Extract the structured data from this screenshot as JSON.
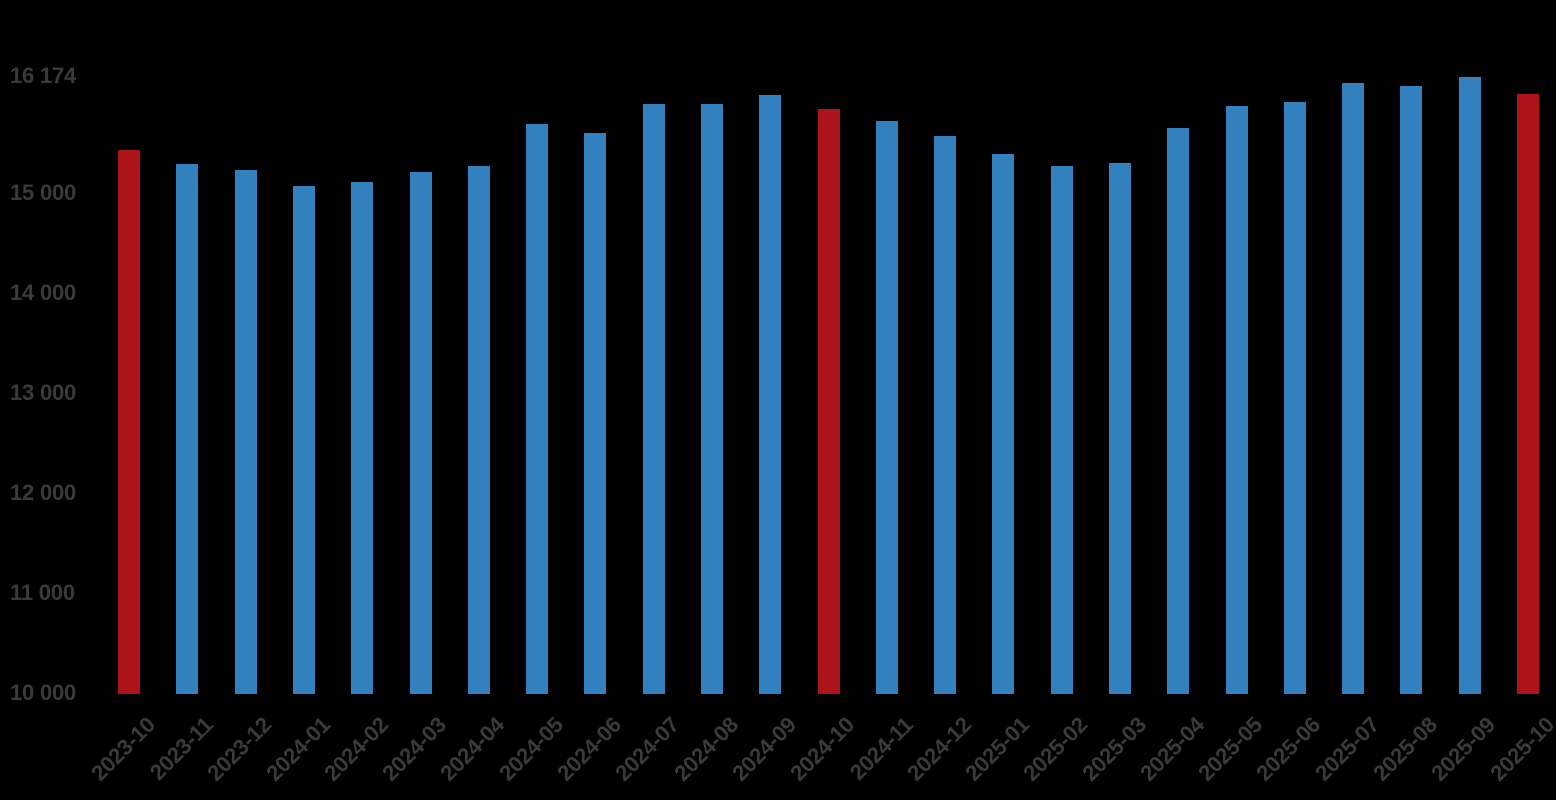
{
  "chart_data": {
    "type": "bar",
    "title": "",
    "xlabel": "",
    "ylabel": "",
    "categories": [
      "2023-10",
      "2023-11",
      "2023-12",
      "2024-01",
      "2024-02",
      "2024-03",
      "2024-04",
      "2024-05",
      "2024-06",
      "2024-07",
      "2024-08",
      "2024-09",
      "2024-10",
      "2024-11",
      "2024-12",
      "2025-01",
      "2025-02",
      "2025-03",
      "2025-04",
      "2025-05",
      "2025-06",
      "2025-07",
      "2025-08",
      "2025-09",
      "2025-10"
    ],
    "values": [
      15440,
      15300,
      15240,
      15080,
      15120,
      15220,
      15280,
      15700,
      15610,
      15900,
      15900,
      15990,
      15850,
      15730,
      15580,
      15400,
      15280,
      15310,
      15660,
      15880,
      15920,
      16110,
      16080,
      16174,
      16000
    ],
    "highlighted_categories": [
      "2023-10",
      "2024-10",
      "2025-10"
    ],
    "colors": {
      "bar_default": "#3380BE",
      "bar_highlight": "#AC1419",
      "tick_text": "#3A3A3A",
      "background": "#000000"
    },
    "ylim": [
      10000,
      16174
    ],
    "yticks": [
      {
        "value": 16174,
        "label": "16 174"
      },
      {
        "value": 15000,
        "label": "15 000"
      },
      {
        "value": 14000,
        "label": "14 000"
      },
      {
        "value": 13000,
        "label": "13 000"
      },
      {
        "value": 12000,
        "label": "12 000"
      },
      {
        "value": 11000,
        "label": "11 000"
      },
      {
        "value": 10000,
        "label": "10 000"
      }
    ],
    "grid": false,
    "legend": false,
    "x_tick_rotation_deg": 45
  }
}
